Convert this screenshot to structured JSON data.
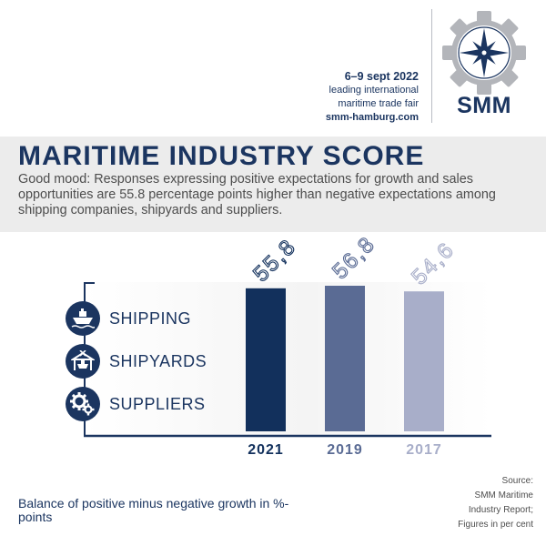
{
  "header": {
    "date": "6–9 sept 2022",
    "line1": "leading international",
    "line2": "maritime trade fair",
    "url": "smm-hamburg.com",
    "logo_text": "SMM"
  },
  "title": "MARITIME INDUSTRY SCORE",
  "subtitle": "Good mood: Responses expressing positive expectations for growth and sales opportunities are 55.8 percentage points higher than negative expectations among shipping companies, shipyards and suppliers.",
  "legend": [
    {
      "label": "SHIPPING",
      "icon": "ship-icon"
    },
    {
      "label": "SHIPYARDS",
      "icon": "shipyard-icon"
    },
    {
      "label": "SUPPLIERS",
      "icon": "gears-icon"
    }
  ],
  "chart_data": {
    "type": "bar",
    "categories": [
      "2021",
      "2019",
      "2017"
    ],
    "values": [
      55.8,
      56.8,
      54.6
    ],
    "value_labels": [
      "55,8",
      "56,8",
      "54,6"
    ],
    "colors": [
      "#12305c",
      "#5a6b94",
      "#a8aec9"
    ],
    "title": "MARITIME INDUSTRY SCORE",
    "ylabel": "Balance of positive minus negative growth in %-points",
    "ylim": [
      0,
      56.8
    ]
  },
  "footnote": "Balance of positive minus negative growth in %-points",
  "source": [
    "Source:",
    "SMM Maritime",
    "Industry Report;",
    "Figures in per cent"
  ],
  "colors": {
    "navy": "#1b3560",
    "band": "#ececec"
  }
}
